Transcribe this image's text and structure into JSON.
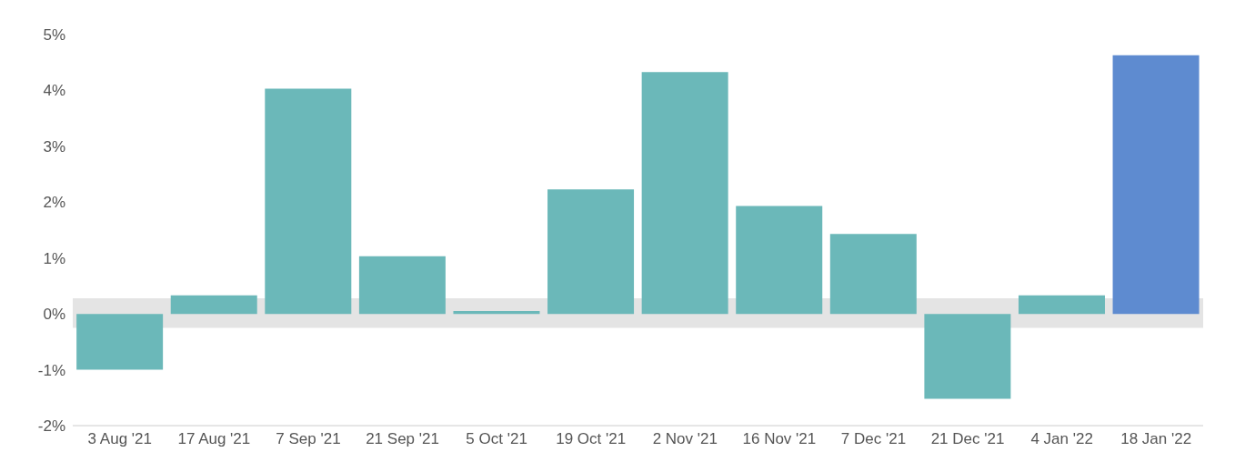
{
  "chart_data": {
    "type": "bar",
    "categories": [
      "3 Aug '21",
      "17 Aug '21",
      "7 Sep '21",
      "21 Sep '21",
      "5 Oct '21",
      "19 Oct '21",
      "2 Nov '21",
      "16 Nov '21",
      "7 Dec '21",
      "21 Dec '21",
      "4 Jan '22",
      "18 Jan '22"
    ],
    "values": [
      -1.0,
      0.33,
      4.03,
      1.03,
      0.05,
      2.23,
      4.33,
      1.93,
      1.43,
      -1.52,
      0.33,
      4.63
    ],
    "colors": [
      "#6bb8b9",
      "#6bb8b9",
      "#6bb8b9",
      "#6bb8b9",
      "#6bb8b9",
      "#6bb8b9",
      "#6bb8b9",
      "#6bb8b9",
      "#6bb8b9",
      "#6bb8b9",
      "#6bb8b9",
      "#5e8bd0"
    ],
    "ylim": [
      -2,
      5
    ],
    "yticks": [
      {
        "value": -2,
        "label": "-2%"
      },
      {
        "value": -1,
        "label": "-1%"
      },
      {
        "value": 0,
        "label": "0%"
      },
      {
        "value": 1,
        "label": "1%"
      },
      {
        "value": 2,
        "label": "2%"
      },
      {
        "value": 3,
        "label": "3%"
      },
      {
        "value": 4,
        "label": "4%"
      },
      {
        "value": 5,
        "label": "5%"
      }
    ],
    "bands": [
      {
        "axis": "y",
        "from": -0.25,
        "to": 0.28,
        "color": "#e4e4e4"
      }
    ],
    "grid": false
  }
}
